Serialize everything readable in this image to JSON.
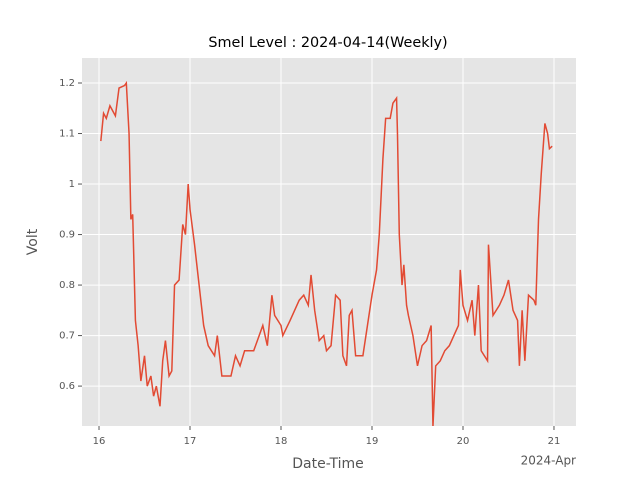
{
  "chart_data": {
    "type": "line",
    "title": "Smel Level : 2024-04-14(Weekly)",
    "x_label": "Date-Time",
    "y_label": "Volt",
    "x_offset_label": "2024-Apr",
    "xlim": [
      15.813,
      21.242
    ],
    "xticks": [
      16,
      17,
      18,
      19,
      20,
      21
    ],
    "ylim": [
      0.521,
      1.2495
    ],
    "yticks": [
      0.6,
      0.7,
      0.8,
      0.9,
      1.0,
      1.1,
      1.2
    ],
    "grid": true,
    "background": "#e5e5e5",
    "x": [
      16.02,
      16.05,
      16.08,
      16.12,
      16.18,
      16.22,
      16.28,
      16.3,
      16.33,
      16.35,
      16.37,
      16.4,
      16.43,
      16.46,
      16.5,
      16.53,
      16.57,
      16.6,
      16.63,
      16.67,
      16.7,
      16.73,
      16.77,
      16.8,
      16.83,
      16.88,
      16.92,
      16.95,
      16.98,
      17.0,
      17.05,
      17.1,
      17.15,
      17.2,
      17.27,
      17.3,
      17.35,
      17.45,
      17.5,
      17.55,
      17.6,
      17.7,
      17.8,
      17.85,
      17.9,
      17.93,
      18.0,
      18.02,
      18.1,
      18.2,
      18.25,
      18.3,
      18.33,
      18.37,
      18.42,
      18.47,
      18.5,
      18.55,
      18.6,
      18.65,
      18.68,
      18.72,
      18.75,
      18.78,
      18.82,
      18.9,
      18.95,
      19.0,
      19.05,
      19.08,
      19.12,
      19.15,
      19.2,
      19.23,
      19.27,
      19.28,
      19.3,
      19.33,
      19.35,
      19.38,
      19.4,
      19.45,
      19.5,
      19.55,
      19.6,
      19.65,
      19.67,
      19.7,
      19.75,
      19.8,
      19.85,
      19.9,
      19.95,
      19.97,
      20.0,
      20.05,
      20.1,
      20.13,
      20.17,
      20.2,
      20.27,
      20.28,
      20.33,
      20.4,
      20.45,
      20.5,
      20.55,
      20.6,
      20.62,
      20.65,
      20.68,
      20.72,
      20.78,
      20.8,
      20.83,
      20.86,
      20.9,
      20.93,
      20.95,
      20.98
    ],
    "series": [
      {
        "name": "Volt",
        "color": "#e24a33",
        "values": [
          1.085,
          1.14,
          1.13,
          1.155,
          1.135,
          1.19,
          1.195,
          1.2,
          1.1,
          0.93,
          0.94,
          0.73,
          0.68,
          0.61,
          0.66,
          0.6,
          0.62,
          0.58,
          0.6,
          0.56,
          0.65,
          0.69,
          0.62,
          0.63,
          0.8,
          0.81,
          0.92,
          0.9,
          1.0,
          0.95,
          0.88,
          0.8,
          0.72,
          0.68,
          0.66,
          0.7,
          0.62,
          0.62,
          0.66,
          0.64,
          0.67,
          0.67,
          0.72,
          0.68,
          0.78,
          0.74,
          0.72,
          0.7,
          0.73,
          0.77,
          0.78,
          0.76,
          0.82,
          0.75,
          0.69,
          0.7,
          0.67,
          0.68,
          0.78,
          0.77,
          0.66,
          0.64,
          0.74,
          0.75,
          0.66,
          0.66,
          0.72,
          0.78,
          0.83,
          0.9,
          1.05,
          1.13,
          1.13,
          1.16,
          1.17,
          1.1,
          0.9,
          0.8,
          0.84,
          0.76,
          0.74,
          0.7,
          0.64,
          0.68,
          0.69,
          0.72,
          0.52,
          0.64,
          0.65,
          0.67,
          0.68,
          0.7,
          0.72,
          0.83,
          0.76,
          0.73,
          0.77,
          0.7,
          0.8,
          0.67,
          0.65,
          0.88,
          0.74,
          0.76,
          0.78,
          0.81,
          0.75,
          0.73,
          0.64,
          0.75,
          0.65,
          0.78,
          0.77,
          0.76,
          0.93,
          1.02,
          1.12,
          1.1,
          1.07,
          1.075
        ]
      }
    ]
  }
}
